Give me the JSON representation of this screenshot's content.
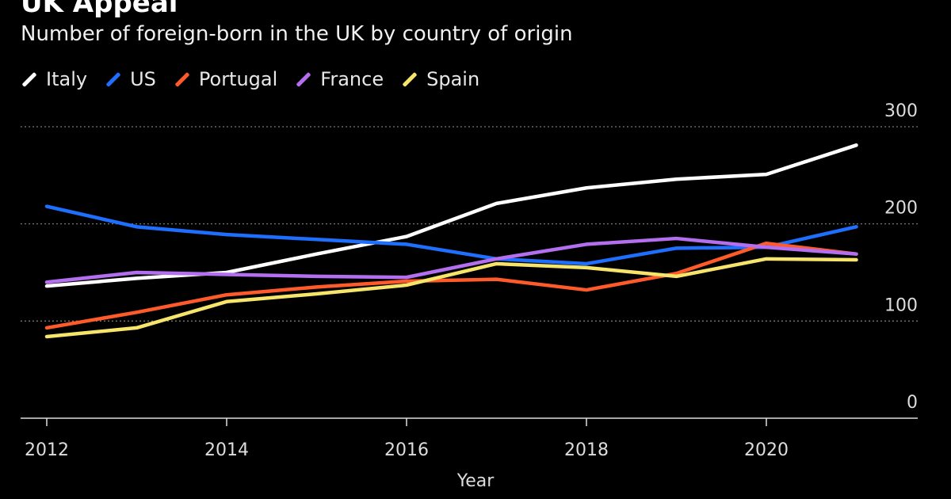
{
  "chart_data": {
    "type": "line",
    "title": "UK Appeal",
    "subtitle": "Number of foreign-born in the UK by country of origin",
    "xlabel": "Year",
    "ylabel": "",
    "x": [
      2012,
      2013,
      2014,
      2015,
      2016,
      2017,
      2018,
      2019,
      2020,
      2021
    ],
    "xticks": [
      "2012",
      "2014",
      "2016",
      "2018",
      "2020"
    ],
    "yticks": [
      "0",
      "100",
      "200",
      "300"
    ],
    "ylim": [
      0,
      300
    ],
    "grid": "horizontal dotted",
    "legend_position": "top-left",
    "series": [
      {
        "name": "Italy",
        "color": "#ffffff",
        "values": [
          136,
          144,
          150,
          169,
          187,
          221,
          237,
          246,
          251,
          281
        ]
      },
      {
        "name": "US",
        "color": "#1f6fff",
        "values": [
          218,
          197,
          189,
          184,
          179,
          164,
          159,
          175,
          176,
          197
        ]
      },
      {
        "name": "Portugal",
        "color": "#ff5a2a",
        "values": [
          93,
          109,
          127,
          135,
          141,
          143,
          132,
          149,
          180,
          169
        ]
      },
      {
        "name": "France",
        "color": "#b46ef0",
        "values": [
          140,
          150,
          148,
          146,
          145,
          164,
          179,
          185,
          176,
          169
        ]
      },
      {
        "name": "Spain",
        "color": "#f7e46a",
        "values": [
          84,
          93,
          120,
          128,
          137,
          159,
          155,
          146,
          164,
          163
        ]
      }
    ]
  }
}
